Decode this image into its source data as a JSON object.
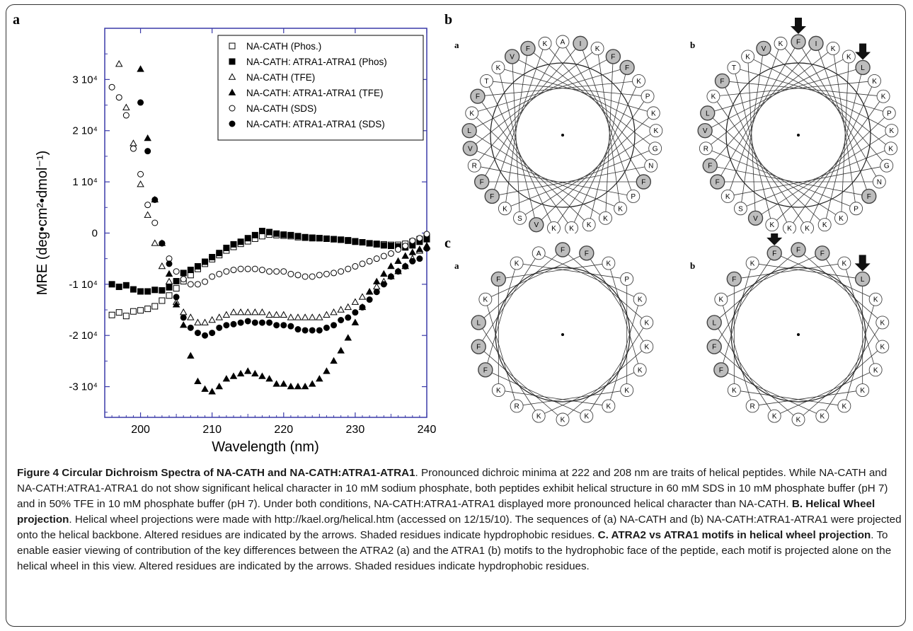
{
  "panel_letters": {
    "a": "a",
    "b": "b",
    "c": "c"
  },
  "chart_data": {
    "type": "scatter",
    "xlabel": "Wavelength (nm)",
    "ylabel": "MRE (deg•cm²•dmol⁻¹)",
    "xlim": [
      195,
      240
    ],
    "ylim": [
      -36000,
      40000
    ],
    "x_ticks": [
      200,
      210,
      220,
      230,
      240
    ],
    "y_ticks": [
      {
        "value": 30000,
        "label": "3 10⁴"
      },
      {
        "value": 20000,
        "label": "2 10⁴"
      },
      {
        "value": 10000,
        "label": "1 10⁴"
      },
      {
        "value": 0,
        "label": "0"
      },
      {
        "value": -10000,
        "label": "-1 10⁴"
      },
      {
        "value": -20000,
        "label": "-2 10⁴"
      },
      {
        "value": -30000,
        "label": "-3 10⁴"
      }
    ],
    "legend_position": "top-right",
    "series": [
      {
        "name": "NA-CATH (Phos.)",
        "marker": "square-open",
        "x": [
          196,
          197,
          198,
          199,
          200,
          201,
          202,
          203,
          204,
          205,
          206,
          207,
          208,
          209,
          210,
          211,
          212,
          213,
          214,
          215,
          216,
          217,
          218,
          219,
          220,
          221,
          222,
          223,
          224,
          225,
          226,
          227,
          228,
          229,
          230,
          231,
          232,
          233,
          234,
          235,
          236,
          237,
          238,
          239,
          240
        ],
        "y": [
          -16000,
          -15500,
          -16200,
          -15300,
          -15100,
          -14800,
          -14300,
          -13200,
          -12200,
          -10800,
          -9400,
          -8200,
          -7000,
          -6000,
          -5100,
          -4300,
          -3400,
          -2700,
          -2100,
          -1600,
          -1100,
          -600,
          -300,
          -400,
          -500,
          -600,
          -800,
          -900,
          -1000,
          -1000,
          -1100,
          -1200,
          -1300,
          -1500,
          -1700,
          -1800,
          -2000,
          -2100,
          -2200,
          -2300,
          -2300,
          -2100,
          -1700,
          -1200,
          -700
        ]
      },
      {
        "name": "NA-CATH: ATRA1-ATRA1 (Phos)",
        "marker": "square-filled",
        "x": [
          196,
          197,
          198,
          199,
          200,
          201,
          202,
          203,
          204,
          205,
          206,
          207,
          208,
          209,
          210,
          211,
          212,
          213,
          214,
          215,
          216,
          217,
          218,
          219,
          220,
          221,
          222,
          223,
          224,
          225,
          226,
          227,
          228,
          229,
          230,
          231,
          232,
          233,
          234,
          235,
          236,
          237,
          238,
          239,
          240
        ],
        "y": [
          -10000,
          -10500,
          -10200,
          -11000,
          -11400,
          -11400,
          -11100,
          -11200,
          -10600,
          -9400,
          -7800,
          -7200,
          -6500,
          -5600,
          -4700,
          -3900,
          -2900,
          -2200,
          -1700,
          -1000,
          -400,
          400,
          200,
          -100,
          -300,
          -400,
          -600,
          -800,
          -900,
          -1000,
          -1100,
          -1200,
          -1300,
          -1400,
          -1600,
          -1800,
          -2000,
          -2200,
          -2400,
          -2500,
          -2600,
          -2800,
          -2400,
          -1700,
          -1200
        ]
      },
      {
        "name": "NA-CATH (TFE)",
        "marker": "triangle-open",
        "x": [
          197,
          198,
          199,
          200,
          201,
          202,
          203,
          204,
          205,
          206,
          207,
          208,
          209,
          210,
          211,
          212,
          213,
          214,
          215,
          216,
          217,
          218,
          219,
          220,
          221,
          222,
          223,
          224,
          225,
          226,
          227,
          228,
          229,
          230,
          231,
          232,
          233,
          234,
          235,
          236,
          237,
          238,
          239,
          240
        ],
        "y": [
          33000,
          24500,
          17500,
          9500,
          3500,
          -2000,
          -6500,
          -9500,
          -13500,
          -15500,
          -16500,
          -17500,
          -17500,
          -17000,
          -16500,
          -16000,
          -15500,
          -15500,
          -15500,
          -15500,
          -15500,
          -16000,
          -16000,
          -16000,
          -16500,
          -16500,
          -16500,
          -16500,
          -16500,
          -16000,
          -15500,
          -15000,
          -14500,
          -13500,
          -12500,
          -11500,
          -10500,
          -9500,
          -8500,
          -7500,
          -6500,
          -5000,
          -3500,
          -2500
        ]
      },
      {
        "name": "NA-CATH: ATRA1-ATRA1 (TFE)",
        "marker": "triangle-filled",
        "x": [
          200,
          201,
          202,
          203,
          204,
          205,
          206,
          207,
          208,
          209,
          210,
          211,
          212,
          213,
          214,
          215,
          216,
          217,
          218,
          219,
          220,
          221,
          222,
          223,
          224,
          225,
          226,
          227,
          228,
          229,
          230,
          231,
          232,
          233,
          234,
          235,
          236,
          237,
          238,
          239,
          240
        ],
        "y": [
          32000,
          18500,
          6500,
          -2000,
          -8000,
          -14000,
          -18000,
          -24000,
          -29000,
          -30500,
          -31000,
          -30000,
          -28500,
          -28000,
          -27500,
          -27000,
          -27500,
          -28000,
          -28500,
          -29500,
          -29500,
          -30000,
          -30000,
          -30000,
          -29500,
          -28500,
          -27000,
          -25000,
          -23000,
          -20500,
          -17500,
          -14500,
          -11500,
          -9500,
          -8000,
          -6500,
          -5500,
          -4500,
          -3800,
          -3200,
          -2700
        ]
      },
      {
        "name": "NA-CATH (SDS)",
        "marker": "circle-open",
        "x": [
          196,
          197,
          198,
          199,
          200,
          201,
          202,
          203,
          204,
          205,
          206,
          207,
          208,
          209,
          210,
          211,
          212,
          213,
          214,
          215,
          216,
          217,
          218,
          219,
          220,
          221,
          222,
          223,
          224,
          225,
          226,
          227,
          228,
          229,
          230,
          231,
          232,
          233,
          234,
          235,
          236,
          237,
          238,
          239,
          240
        ],
        "y": [
          28500,
          26500,
          23000,
          16500,
          11500,
          5500,
          2000,
          -2000,
          -5000,
          -7500,
          -9000,
          -10000,
          -10000,
          -9500,
          -8500,
          -8000,
          -7500,
          -7200,
          -7000,
          -7000,
          -7000,
          -7200,
          -7500,
          -7500,
          -7500,
          -8000,
          -8200,
          -8500,
          -8500,
          -8200,
          -8000,
          -7800,
          -7500,
          -7000,
          -6500,
          -6000,
          -5500,
          -5000,
          -4500,
          -4000,
          -3200,
          -2500,
          -1500,
          -1000,
          -200
        ]
      },
      {
        "name": "NA-CATH: ATRA1-ATRA1 (SDS)",
        "marker": "circle-filled",
        "x": [
          200,
          201,
          202,
          203,
          204,
          205,
          206,
          207,
          208,
          209,
          210,
          211,
          212,
          213,
          214,
          215,
          216,
          217,
          218,
          219,
          220,
          221,
          222,
          223,
          224,
          225,
          226,
          227,
          228,
          229,
          230,
          231,
          232,
          233,
          234,
          235,
          236,
          237,
          238,
          239,
          240
        ],
        "y": [
          25500,
          16000,
          6500,
          -2000,
          -6000,
          -12500,
          -16500,
          -18500,
          -19500,
          -20000,
          -19500,
          -18500,
          -18000,
          -17800,
          -17500,
          -17200,
          -17500,
          -17500,
          -17500,
          -18000,
          -18000,
          -18200,
          -18800,
          -19000,
          -19000,
          -19000,
          -18500,
          -18000,
          -17000,
          -16500,
          -15500,
          -14500,
          -13000,
          -11500,
          -10000,
          -8500,
          -7500,
          -6500,
          -5500,
          -5000,
          -3000
        ]
      }
    ]
  },
  "wheels": [
    {
      "id": "b-a",
      "label": "a",
      "kind": "circle",
      "residues": [
        "A",
        "I",
        "K",
        "F",
        "F",
        "K",
        "P",
        "K",
        "K",
        "G",
        "N",
        "F",
        "P",
        "K",
        "K",
        "K",
        "K",
        "K",
        "V",
        "S",
        "K",
        "F",
        "F",
        "R",
        "V",
        "L",
        "K",
        "F",
        "T",
        "K",
        "V",
        "F",
        "K"
      ],
      "hydrophobic": [
        "I",
        "F",
        "V",
        "L"
      ],
      "arrows": []
    },
    {
      "id": "b-b",
      "label": "b",
      "kind": "circle",
      "residues": [
        "F",
        "I",
        "K",
        "K",
        "L",
        "K",
        "K",
        "P",
        "K",
        "K",
        "G",
        "N",
        "F",
        "P",
        "K",
        "K",
        "K",
        "K",
        "K",
        "V",
        "S",
        "K",
        "F",
        "F",
        "R",
        "V",
        "L",
        "K",
        "F",
        "T",
        "K",
        "V",
        "K"
      ],
      "hydrophobic": [
        "F",
        "L",
        "V",
        "I"
      ],
      "arrows": [
        0,
        4
      ]
    },
    {
      "id": "c-a",
      "label": "a",
      "kind": "square",
      "residues": [
        "F",
        "F",
        "K",
        "P",
        "K",
        "K",
        "K",
        "K",
        "K",
        "K",
        "K",
        "K",
        "K",
        "R",
        "K",
        "F",
        "F",
        "L",
        "K",
        "F",
        "K",
        "A"
      ],
      "hydrophobic": [
        "F",
        "L"
      ],
      "arrows": []
    },
    {
      "id": "c-b",
      "label": "b",
      "kind": "square",
      "residues": [
        "F",
        "F",
        "K",
        "L",
        "K",
        "K",
        "K",
        "K",
        "K",
        "K",
        "K",
        "K",
        "K",
        "R",
        "K",
        "F",
        "F",
        "L",
        "K",
        "F",
        "K",
        "F"
      ],
      "hydrophobic": [
        "F",
        "L"
      ],
      "arrows": [
        3,
        21
      ]
    }
  ],
  "caption": {
    "fig_head": "Figure 4 Circular Dichroism Spectra of NA-CATH and NA-CATH:ATRA1-ATRA1",
    "fig_text": ". Pronounced dichroic minima at 222 and 208 nm are traits of helical peptides. While NA-CATH and NA-CATH:ATRA1-ATRA1 do not show significant helical character in 10 mM sodium phosphate, both peptides exhibit helical structure in 60 mM SDS in 10 mM phosphate buffer (pH 7) and in 50% TFE in 10 mM phosphate buffer (pH 7). Under both conditions, NA-CATH:ATRA1-ATRA1 displayed more pronounced helical character than NA-CATH. ",
    "b_head": "B. Helical Wheel projection",
    "b_text": ". Helical wheel projections were made with http://kael.org/helical.htm (accessed on 12/15/10). The sequences of (a) NA-CATH and (b) NA-CATH:ATRA1-ATRA1 were projected onto the helical backbone. Altered residues are indicated by the arrows. Shaded residues indicate hypdrophobic residues. ",
    "c_head": "C. ATRA2 vs ATRA1 motifs in helical wheel projection",
    "c_text": ". To enable easier viewing of contribution of the key differences between the ATRA2 (a) and the ATRA1 (b) motifs to the hydrophobic face of the peptide, each motif is projected alone on the helical wheel in this view. Altered residues are indicated by the arrows. Shaded residues indicate hypdrophobic residues."
  },
  "colors": {
    "axis_frame": "#3a3aa8",
    "marker": "#000000",
    "shaded_residue": "#bdbdbd",
    "frame": "#333333"
  }
}
